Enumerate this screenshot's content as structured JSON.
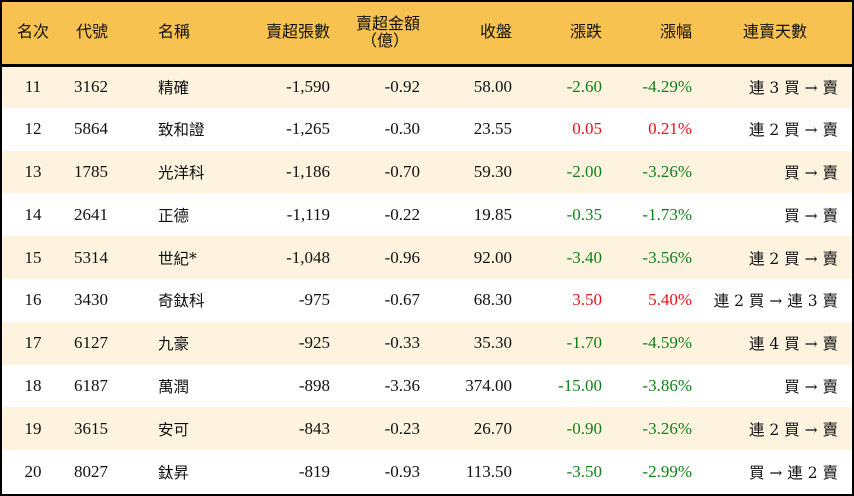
{
  "table": {
    "headers": {
      "rank": "名次",
      "code": "代號",
      "name": "名稱",
      "net_sell_lots": "賣超張數",
      "net_sell_amount_line1": "賣超金額",
      "net_sell_amount_line2": "（億）",
      "close": "收盤",
      "change": "漲跌",
      "change_pct": "漲幅",
      "consecutive_days": "連賣天數"
    },
    "colors": {
      "header_bg": "#f8c250",
      "row_odd_bg": "#fdf3df",
      "row_even_bg": "#ffffff",
      "down": "#11801a",
      "up": "#e8101a"
    },
    "rows": [
      {
        "rank": "11",
        "code": "3162",
        "name": "精確",
        "lots": "-1,590",
        "amount": "-0.92",
        "close": "58.00",
        "change": "-2.60",
        "pct": "-4.29%",
        "dir": "down",
        "days": "連 3 買 → 賣"
      },
      {
        "rank": "12",
        "code": "5864",
        "name": "致和證",
        "lots": "-1,265",
        "amount": "-0.30",
        "close": "23.55",
        "change": "0.05",
        "pct": "0.21%",
        "dir": "up",
        "days": "連 2 買 → 賣"
      },
      {
        "rank": "13",
        "code": "1785",
        "name": "光洋科",
        "lots": "-1,186",
        "amount": "-0.70",
        "close": "59.30",
        "change": "-2.00",
        "pct": "-3.26%",
        "dir": "down",
        "days": "買 → 賣"
      },
      {
        "rank": "14",
        "code": "2641",
        "name": "正德",
        "lots": "-1,119",
        "amount": "-0.22",
        "close": "19.85",
        "change": "-0.35",
        "pct": "-1.73%",
        "dir": "down",
        "days": "買 → 賣"
      },
      {
        "rank": "15",
        "code": "5314",
        "name": "世紀*",
        "lots": "-1,048",
        "amount": "-0.96",
        "close": "92.00",
        "change": "-3.40",
        "pct": "-3.56%",
        "dir": "down",
        "days": "連 2 買 → 賣"
      },
      {
        "rank": "16",
        "code": "3430",
        "name": "奇鈦科",
        "lots": "-975",
        "amount": "-0.67",
        "close": "68.30",
        "change": "3.50",
        "pct": "5.40%",
        "dir": "up",
        "days": "連 2 買 → 連 3 賣"
      },
      {
        "rank": "17",
        "code": "6127",
        "name": "九豪",
        "lots": "-925",
        "amount": "-0.33",
        "close": "35.30",
        "change": "-1.70",
        "pct": "-4.59%",
        "dir": "down",
        "days": "連 4 買 → 賣"
      },
      {
        "rank": "18",
        "code": "6187",
        "name": "萬潤",
        "lots": "-898",
        "amount": "-3.36",
        "close": "374.00",
        "change": "-15.00",
        "pct": "-3.86%",
        "dir": "down",
        "days": "買 → 賣"
      },
      {
        "rank": "19",
        "code": "3615",
        "name": "安可",
        "lots": "-843",
        "amount": "-0.23",
        "close": "26.70",
        "change": "-0.90",
        "pct": "-3.26%",
        "dir": "down",
        "days": "連 2 買 → 賣"
      },
      {
        "rank": "20",
        "code": "8027",
        "name": "鈦昇",
        "lots": "-819",
        "amount": "-0.93",
        "close": "113.50",
        "change": "-3.50",
        "pct": "-2.99%",
        "dir": "down",
        "days": "買 → 連 2 賣"
      }
    ]
  }
}
